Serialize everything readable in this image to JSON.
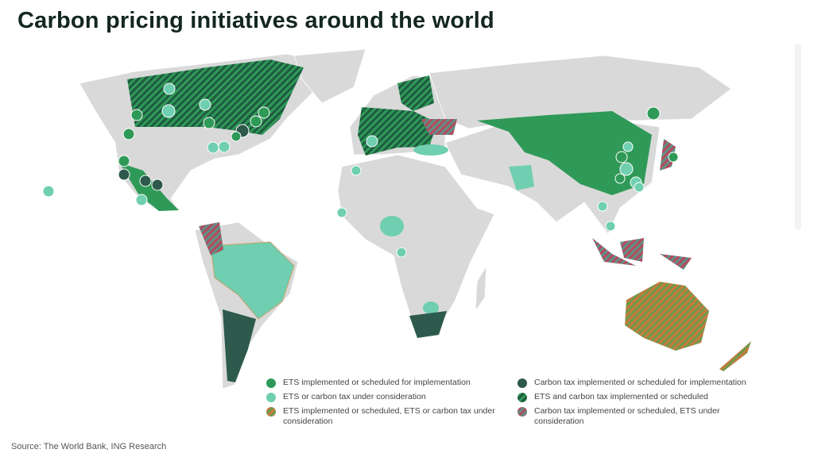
{
  "title": "Carbon pricing initiatives around the world",
  "legend": {
    "items": [
      {
        "label": "ETS implemented or scheduled for implementation"
      },
      {
        "label": "Carbon tax implemented or scheduled for implementation"
      },
      {
        "label": "ETS or carbon tax under consideration"
      },
      {
        "label": "ETS and carbon tax implemented or scheduled"
      },
      {
        "label": "ETS implemented or scheduled, ETS or carbon tax under consideration"
      },
      {
        "label": "Carbon tax implemented or scheduled, ETS under consideration"
      }
    ]
  },
  "source": "Source: The World Bank, ING Research"
}
